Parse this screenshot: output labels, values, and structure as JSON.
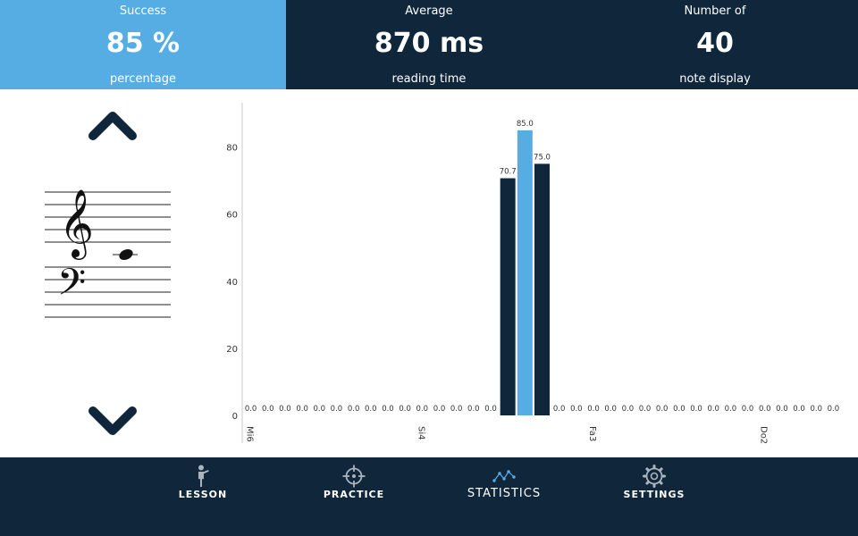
{
  "header": {
    "success": {
      "title": "Success",
      "value": "85 %",
      "sub": "percentage"
    },
    "average": {
      "title": "Average",
      "value": "870 ms",
      "sub": "reading time"
    },
    "count": {
      "title": "Number of",
      "value": "40",
      "sub": "note display"
    }
  },
  "colors": {
    "dark": "#10263a",
    "accent": "#56ade3",
    "white": "#ffffff"
  },
  "nav": {
    "up_icon": "chevron-up-icon",
    "down_icon": "chevron-down-icon"
  },
  "staff": {
    "treble_clef": "𝄞",
    "bass_clef": "𝄢"
  },
  "chart_data": {
    "type": "bar",
    "ylim": [
      0,
      90
    ],
    "yticks": [
      0,
      20,
      40,
      60,
      80
    ],
    "categories": [
      "Mi6",
      "",
      "",
      "",
      "",
      "",
      "",
      "",
      "",
      "",
      "Si4",
      "",
      "",
      "",
      "",
      "",
      "",
      "",
      "",
      "",
      "Fa3",
      "",
      "",
      "",
      "",
      "",
      "",
      "",
      "",
      "",
      "Do2",
      "",
      "",
      "",
      ""
    ],
    "x_tick_labels": [
      "Mi6",
      "Si4",
      "Fa3",
      "Do2"
    ],
    "values": [
      0,
      0,
      0,
      0,
      0,
      0,
      0,
      0,
      0,
      0,
      0,
      0,
      0,
      0,
      0,
      70.7,
      85.0,
      75.0,
      0,
      0,
      0,
      0,
      0,
      0,
      0,
      0,
      0,
      0,
      0,
      0,
      0,
      0,
      0,
      0,
      0
    ],
    "value_labels": [
      "0.0",
      "0.0",
      "0.0",
      "0.0",
      "0.0",
      "0.0",
      "0.0",
      "0.0",
      "0.0",
      "0.0",
      "0.0",
      "0.0",
      "0.0",
      "0.0",
      "0.0",
      "70.7",
      "85.0",
      "75.0",
      "0.0",
      "0.0",
      "0.0",
      "0.0",
      "0.0",
      "0.0",
      "0.0",
      "0.0",
      "0.0",
      "0.0",
      "0.0",
      "0.0",
      "0.0",
      "0.0",
      "0.0",
      "0.0",
      "0.0"
    ],
    "highlight_index": 16,
    "grid": false
  },
  "footer": {
    "tabs": [
      {
        "label": "LESSON",
        "icon": "person-pointing-icon"
      },
      {
        "label": "PRACTICE",
        "icon": "crosshair-icon"
      },
      {
        "label": "STATISTICS",
        "icon": "line-chart-icon"
      },
      {
        "label": "SETTINGS",
        "icon": "gear-icon"
      }
    ],
    "active_tab": "STATISTICS"
  }
}
